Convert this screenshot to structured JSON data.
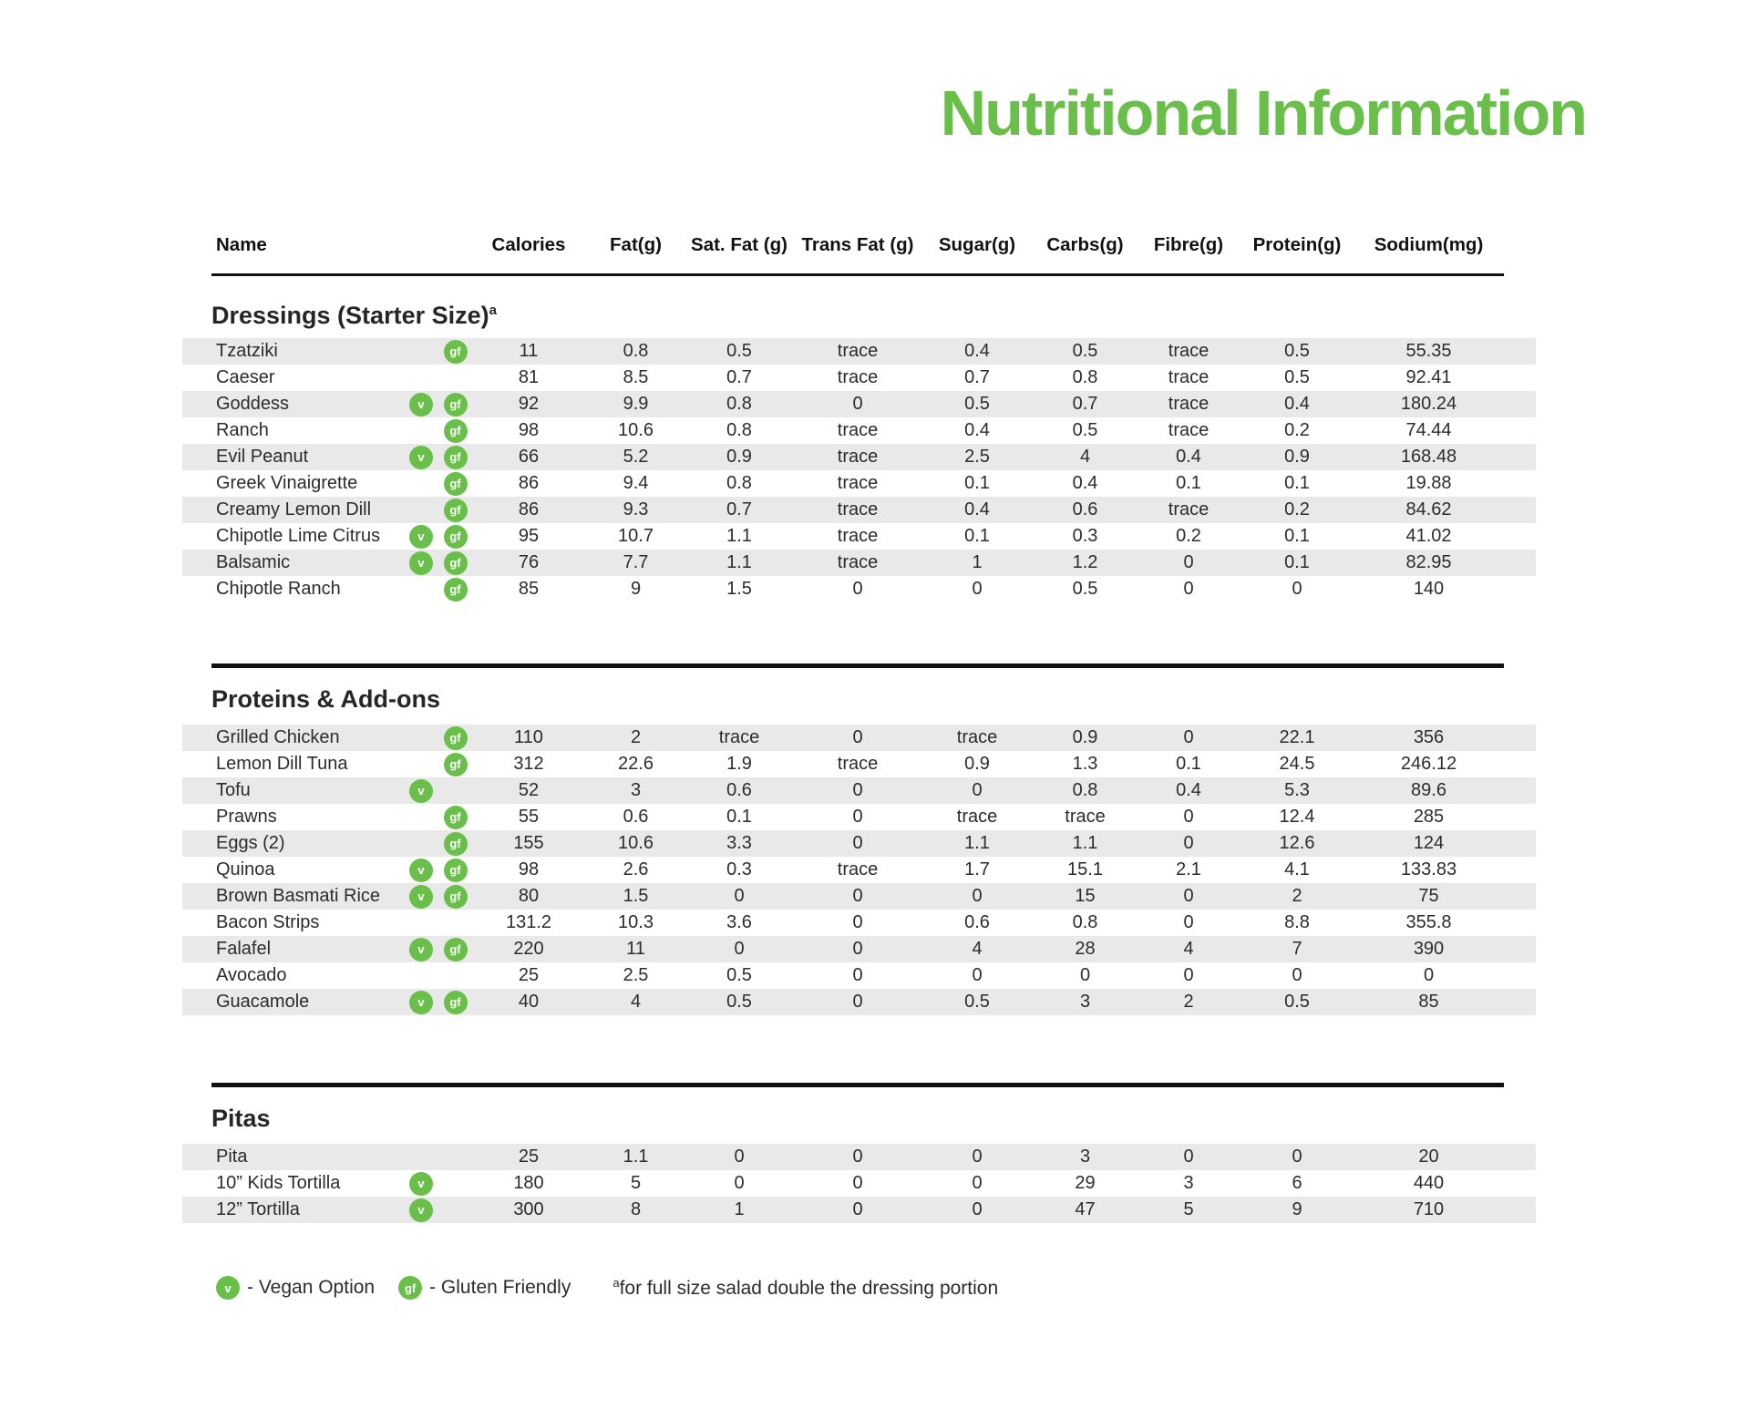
{
  "title": "Nutritional Information",
  "badge_symbols": {
    "vegan": "v",
    "gluten": "gf"
  },
  "table": {
    "name_column": "Name",
    "columns": [
      "Calories",
      "Fat(g)",
      "Sat. Fat (g)",
      "Trans Fat (g)",
      "Sugar(g)",
      "Carbs(g)",
      "Fibre(g)",
      "Protein(g)",
      "Sodium(mg)"
    ],
    "sections": [
      {
        "heading": "Dressings (Starter Size)",
        "heading_sup": "a",
        "rows": [
          {
            "name": "Tzatziki",
            "vegan": false,
            "gluten": true,
            "values": [
              "11",
              "0.8",
              "0.5",
              "trace",
              "0.4",
              "0.5",
              "trace",
              "0.5",
              "55.35"
            ]
          },
          {
            "name": "Caeser",
            "vegan": false,
            "gluten": false,
            "values": [
              "81",
              "8.5",
              "0.7",
              "trace",
              "0.7",
              "0.8",
              "trace",
              "0.5",
              "92.41"
            ]
          },
          {
            "name": "Goddess",
            "vegan": true,
            "gluten": true,
            "values": [
              "92",
              "9.9",
              "0.8",
              "0",
              "0.5",
              "0.7",
              "trace",
              "0.4",
              "180.24"
            ]
          },
          {
            "name": "Ranch",
            "vegan": false,
            "gluten": true,
            "values": [
              "98",
              "10.6",
              "0.8",
              "trace",
              "0.4",
              "0.5",
              "trace",
              "0.2",
              "74.44"
            ]
          },
          {
            "name": "Evil Peanut",
            "vegan": true,
            "gluten": true,
            "values": [
              "66",
              "5.2",
              "0.9",
              "trace",
              "2.5",
              "4",
              "0.4",
              "0.9",
              "168.48"
            ]
          },
          {
            "name": "Greek Vinaigrette",
            "vegan": false,
            "gluten": true,
            "values": [
              "86",
              "9.4",
              "0.8",
              "trace",
              "0.1",
              "0.4",
              "0.1",
              "0.1",
              "19.88"
            ]
          },
          {
            "name": "Creamy Lemon Dill",
            "vegan": false,
            "gluten": true,
            "values": [
              "86",
              "9.3",
              "0.7",
              "trace",
              "0.4",
              "0.6",
              "trace",
              "0.2",
              "84.62"
            ]
          },
          {
            "name": "Chipotle Lime Citrus",
            "vegan": true,
            "gluten": true,
            "values": [
              "95",
              "10.7",
              "1.1",
              "trace",
              "0.1",
              "0.3",
              "0.2",
              "0.1",
              "41.02"
            ]
          },
          {
            "name": "Balsamic",
            "vegan": true,
            "gluten": true,
            "values": [
              "76",
              "7.7",
              "1.1",
              "trace",
              "1",
              "1.2",
              "0",
              "0.1",
              "82.95"
            ]
          },
          {
            "name": "Chipotle Ranch",
            "vegan": false,
            "gluten": true,
            "values": [
              "85",
              "9",
              "1.5",
              "0",
              "0",
              "0.5",
              "0",
              "0",
              "140"
            ]
          }
        ]
      },
      {
        "heading": "Proteins & Add-ons",
        "heading_sup": "",
        "rows": [
          {
            "name": "Grilled Chicken",
            "vegan": false,
            "gluten": true,
            "values": [
              "110",
              "2",
              "trace",
              "0",
              "trace",
              "0.9",
              "0",
              "22.1",
              "356"
            ]
          },
          {
            "name": "Lemon Dill Tuna",
            "vegan": false,
            "gluten": true,
            "values": [
              "312",
              "22.6",
              "1.9",
              "trace",
              "0.9",
              "1.3",
              "0.1",
              "24.5",
              "246.12"
            ]
          },
          {
            "name": "Tofu",
            "vegan": true,
            "gluten": false,
            "values": [
              "52",
              "3",
              "0.6",
              "0",
              "0",
              "0.8",
              "0.4",
              "5.3",
              "89.6"
            ]
          },
          {
            "name": "Prawns",
            "vegan": false,
            "gluten": true,
            "values": [
              "55",
              "0.6",
              "0.1",
              "0",
              "trace",
              "trace",
              "0",
              "12.4",
              "285"
            ]
          },
          {
            "name": "Eggs (2)",
            "vegan": false,
            "gluten": true,
            "values": [
              "155",
              "10.6",
              "3.3",
              "0",
              "1.1",
              "1.1",
              "0",
              "12.6",
              "124"
            ]
          },
          {
            "name": "Quinoa",
            "vegan": true,
            "gluten": true,
            "values": [
              "98",
              "2.6",
              "0.3",
              "trace",
              "1.7",
              "15.1",
              "2.1",
              "4.1",
              "133.83"
            ]
          },
          {
            "name": "Brown Basmati Rice",
            "vegan": true,
            "gluten": true,
            "values": [
              "80",
              "1.5",
              "0",
              "0",
              "0",
              "15",
              "0",
              "2",
              "75"
            ]
          },
          {
            "name": "Bacon Strips",
            "vegan": false,
            "gluten": false,
            "values": [
              "131.2",
              "10.3",
              "3.6",
              "0",
              "0.6",
              "0.8",
              "0",
              "8.8",
              "355.8"
            ]
          },
          {
            "name": "Falafel",
            "vegan": true,
            "gluten": true,
            "values": [
              "220",
              "11",
              "0",
              "0",
              "4",
              "28",
              "4",
              "7",
              "390"
            ]
          },
          {
            "name": "Avocado",
            "vegan": false,
            "gluten": false,
            "values": [
              "25",
              "2.5",
              "0.5",
              "0",
              "0",
              "0",
              "0",
              "0",
              "0"
            ]
          },
          {
            "name": "Guacamole",
            "vegan": true,
            "gluten": true,
            "values": [
              "40",
              "4",
              "0.5",
              "0",
              "0.5",
              "3",
              "2",
              "0.5",
              "85"
            ]
          }
        ]
      },
      {
        "heading": "Pitas",
        "heading_sup": "",
        "rows": [
          {
            "name": "Pita",
            "vegan": false,
            "gluten": false,
            "values": [
              "25",
              "1.1",
              "0",
              "0",
              "0",
              "3",
              "0",
              "0",
              "20"
            ]
          },
          {
            "name": "10” Kids Tortilla",
            "vegan": true,
            "gluten": false,
            "values": [
              "180",
              "5",
              "0",
              "0",
              "0",
              "29",
              "3",
              "6",
              "440"
            ]
          },
          {
            "name": "12” Tortilla",
            "vegan": true,
            "gluten": false,
            "values": [
              "300",
              "8",
              "1",
              "0",
              "0",
              "47",
              "5",
              "9",
              "710"
            ]
          }
        ]
      }
    ]
  },
  "legend": {
    "vegan_symbol": "v",
    "vegan_label": "- Vegan Option",
    "gluten_symbol": "gf",
    "gluten_label": "- Gluten Friendly",
    "footnote_sup": "a",
    "footnote": "for full size salad double the dressing portion"
  }
}
